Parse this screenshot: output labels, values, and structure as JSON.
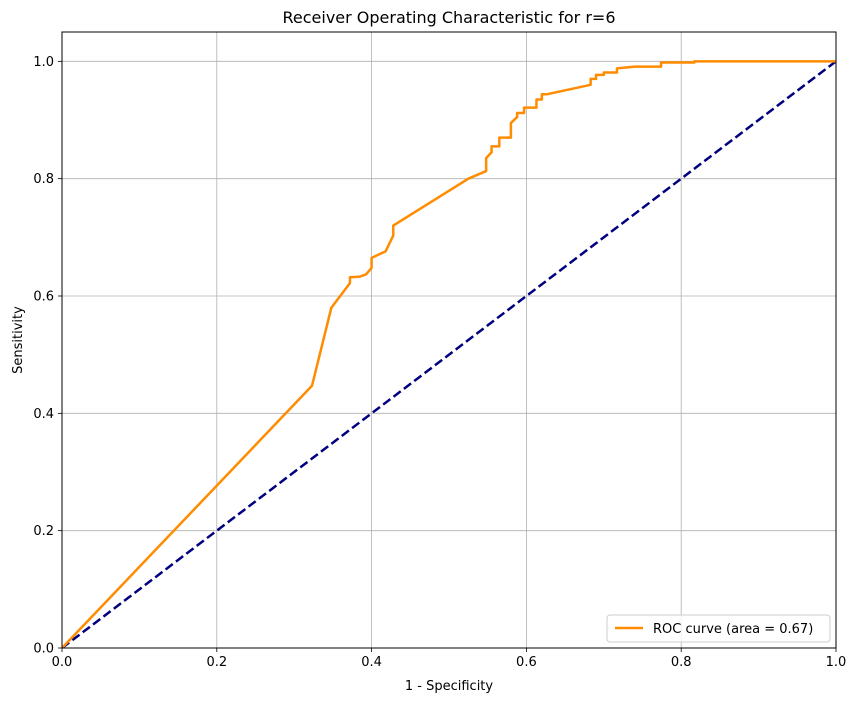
{
  "chart_data": {
    "type": "line",
    "title": "Receiver Operating Characteristic for r=6",
    "xlabel": "1 - Specificity",
    "ylabel": "Sensitivity",
    "xlim": [
      0.0,
      1.0
    ],
    "ylim": [
      0.0,
      1.05
    ],
    "x_ticks": [
      0.0,
      0.2,
      0.4,
      0.6,
      0.8,
      1.0
    ],
    "y_ticks": [
      0.0,
      0.2,
      0.4,
      0.6,
      0.8,
      1.0
    ],
    "x_tick_labels": [
      "0.0",
      "0.2",
      "0.4",
      "0.6",
      "0.8",
      "1.0"
    ],
    "y_tick_labels": [
      "0.0",
      "0.2",
      "0.4",
      "0.6",
      "0.8",
      "1.0"
    ],
    "grid": true,
    "legend_placement": "lower-right",
    "series": [
      {
        "name": "ROC curve (area = 0.67)",
        "color": "#ff8c00",
        "style": "solid",
        "x": [
          0.0,
          0.323,
          0.348,
          0.372,
          0.372,
          0.385,
          0.393,
          0.4,
          0.4,
          0.418,
          0.428,
          0.428,
          0.525,
          0.548,
          0.548,
          0.555,
          0.555,
          0.565,
          0.565,
          0.58,
          0.58,
          0.588,
          0.588,
          0.597,
          0.597,
          0.613,
          0.613,
          0.62,
          0.62,
          0.627,
          0.683,
          0.683,
          0.69,
          0.69,
          0.7,
          0.7,
          0.717,
          0.717,
          0.74,
          0.774,
          0.774,
          0.817,
          0.817,
          1.0
        ],
        "y": [
          0.0,
          0.447,
          0.58,
          0.622,
          0.632,
          0.633,
          0.637,
          0.648,
          0.665,
          0.676,
          0.703,
          0.72,
          0.8,
          0.813,
          0.835,
          0.845,
          0.855,
          0.855,
          0.87,
          0.87,
          0.895,
          0.905,
          0.912,
          0.912,
          0.921,
          0.921,
          0.935,
          0.935,
          0.944,
          0.944,
          0.96,
          0.97,
          0.97,
          0.977,
          0.977,
          0.981,
          0.981,
          0.988,
          0.991,
          0.991,
          0.998,
          0.998,
          1.0,
          1.0
        ]
      },
      {
        "name": "",
        "color": "#000080",
        "style": "dashed",
        "x": [
          0.0,
          1.0
        ],
        "y": [
          0.0,
          1.0
        ]
      }
    ]
  }
}
